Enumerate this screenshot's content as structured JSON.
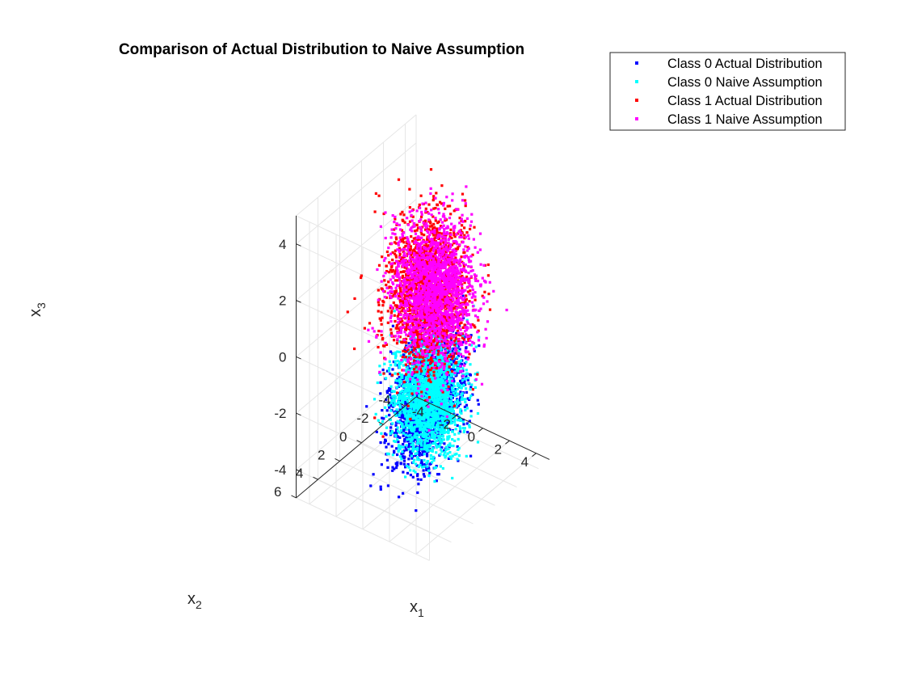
{
  "chart_data": {
    "type": "scatter",
    "projection": "3d",
    "title": "Comparison of Actual Distribution to Naive Assumption",
    "xlabel": "x",
    "xlabel_sub": "1",
    "ylabel": "x",
    "ylabel_sub": "2",
    "zlabel": "x",
    "zlabel_sub": "3",
    "xlim": [
      -5,
      5
    ],
    "ylim": [
      -5,
      6
    ],
    "zlim": [
      -5,
      5
    ],
    "xticks": [
      -4,
      -2,
      0,
      2,
      4
    ],
    "yticks": [
      -4,
      -2,
      0,
      2,
      4,
      6
    ],
    "zticks": [
      -4,
      -2,
      0,
      2,
      4
    ],
    "grid": true,
    "legend_position": "outside-top-right",
    "series": [
      {
        "name": "Class 0 Actual Distribution",
        "color": "#0000ff",
        "marker": "point",
        "count": 1800,
        "mean": [
          0.0,
          0.0,
          -2.3
        ],
        "std": [
          1.1,
          1.9,
          0.9
        ],
        "corr_xy": 0.55
      },
      {
        "name": "Class 0 Naive Assumption",
        "color": "#00ffff",
        "marker": "point",
        "count": 1800,
        "mean": [
          0.0,
          0.0,
          -2.3
        ],
        "std": [
          1.0,
          1.0,
          1.0
        ],
        "corr_xy": 0.0
      },
      {
        "name": "Class 1 Actual Distribution",
        "color": "#ff0000",
        "marker": "point",
        "count": 1800,
        "mean": [
          0.0,
          0.0,
          1.5
        ],
        "std": [
          1.2,
          1.2,
          1.25
        ],
        "corr_xy": 0.0
      },
      {
        "name": "Class 1 Naive Assumption",
        "color": "#ff00ff",
        "marker": "point",
        "count": 1800,
        "mean": [
          0.5,
          0.0,
          1.6
        ],
        "std": [
          1.2,
          1.2,
          1.2
        ],
        "corr_xy": 0.0
      }
    ]
  }
}
